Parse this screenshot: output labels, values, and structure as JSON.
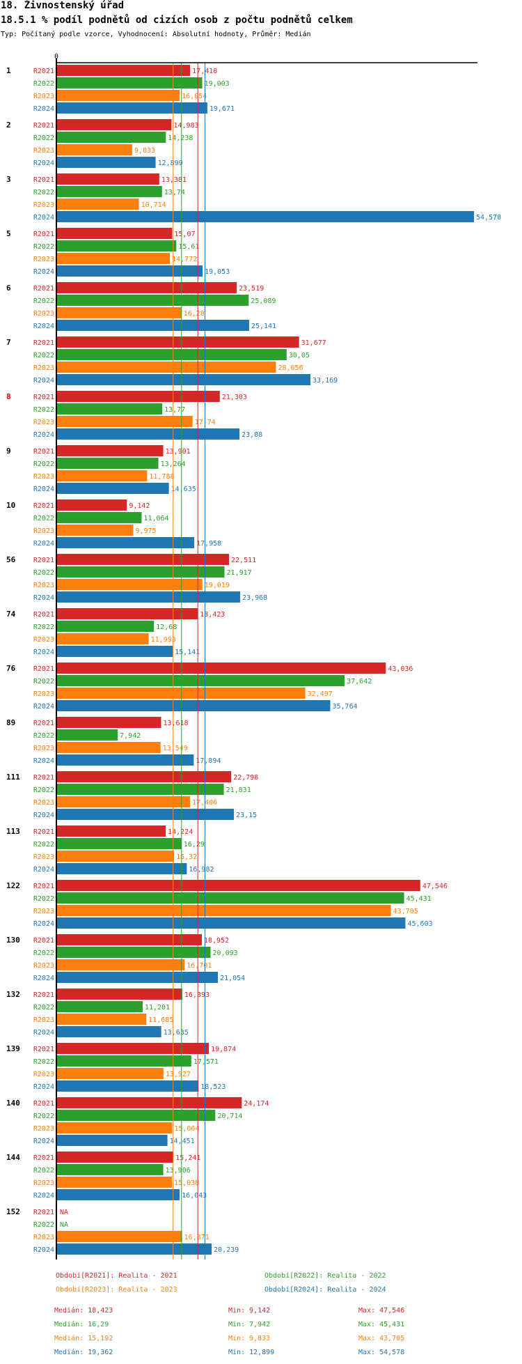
{
  "header": {
    "title": "18. Živnostenský úřad",
    "subtitle": "18.5.1 % podíl podnětů od cizích osob z počtu podnětů celkem",
    "info": "Typ: Počítaný podle vzorce, Vyhodnocení: Absolutní hodnoty, Průměr: Medián"
  },
  "chart_data": {
    "type": "bar",
    "orientation": "horizontal",
    "title": "18.5.1 % podíl podnětů od cizích osob z počtu podnětů celkem",
    "xlabel": "",
    "ylabel": "",
    "x_tick_labels": [
      "0"
    ],
    "xlim": [
      0,
      55
    ],
    "grid": false,
    "legend_position": "bottom",
    "series_names": [
      "R2021",
      "R2022",
      "R2023",
      "R2024"
    ],
    "colors": {
      "R2021": "#d62728",
      "R2022": "#2ca02c",
      "R2023": "#ff7f0e",
      "R2024": "#1f77b4"
    },
    "highlighted_category": "8",
    "highlight_color": "#ff0000",
    "categories": [
      "1",
      "2",
      "3",
      "5",
      "6",
      "7",
      "8",
      "9",
      "10",
      "56",
      "74",
      "76",
      "89",
      "111",
      "113",
      "122",
      "130",
      "132",
      "139",
      "140",
      "144",
      "152"
    ],
    "series": [
      {
        "name": "R2021",
        "values": [
          17.418,
          14.983,
          13.381,
          15.07,
          23.519,
          31.677,
          21.303,
          13.901,
          9.142,
          22.511,
          18.423,
          43.036,
          13.618,
          22.798,
          14.224,
          47.546,
          18.952,
          16.393,
          19.874,
          24.174,
          15.241,
          null
        ],
        "labels": [
          "17,418",
          "14,983",
          "13,381",
          "15,07",
          "23,519",
          "31,677",
          "21,303",
          "13,901",
          "9,142",
          "22,511",
          "18,423",
          "43,036",
          "13,618",
          "22,798",
          "14,224",
          "47,546",
          "18,952",
          "16,393",
          "19,874",
          "24,174",
          "15,241",
          "NA"
        ]
      },
      {
        "name": "R2022",
        "values": [
          19.003,
          14.238,
          13.74,
          15.61,
          25.089,
          30.05,
          13.77,
          13.264,
          11.064,
          21.917,
          12.68,
          37.642,
          7.942,
          21.831,
          16.29,
          45.431,
          20.093,
          11.201,
          17.571,
          20.714,
          13.906,
          null
        ],
        "labels": [
          "19,003",
          "14,238",
          "13,74",
          "15,61",
          "25,089",
          "30,05",
          "13,77",
          "13,264",
          "11,064",
          "21,917",
          "12,68",
          "37,642",
          "7,942",
          "21,831",
          "16,29",
          "45,431",
          "20,093",
          "11,201",
          "17,571",
          "20,714",
          "13,906",
          "NA"
        ]
      },
      {
        "name": "R2023",
        "values": [
          16.054,
          9.833,
          10.714,
          14.772,
          16.28,
          28.656,
          17.74,
          11.788,
          9.975,
          19.019,
          11.993,
          32.497,
          13.549,
          17.406,
          15.32,
          43.705,
          16.701,
          11.685,
          13.927,
          15.064,
          15.038,
          16.371
        ],
        "labels": [
          "16,054",
          "9,833",
          "10,714",
          "14,772",
          "16,28",
          "28,656",
          "17,74",
          "11,788",
          "9,975",
          "19,019",
          "11,993",
          "32,497",
          "13,549",
          "17,406",
          "15,32",
          "43,705",
          "16,701",
          "11,685",
          "13,927",
          "15,064",
          "15,038",
          "16,371"
        ]
      },
      {
        "name": "R2024",
        "values": [
          19.671,
          12.899,
          54.578,
          19.053,
          25.141,
          33.169,
          23.88,
          14.635,
          17.958,
          23.968,
          15.141,
          35.764,
          17.894,
          23.15,
          16.982,
          45.603,
          21.054,
          13.635,
          18.523,
          14.451,
          16.043,
          20.239
        ],
        "labels": [
          "19,671",
          "12,899",
          "54,578",
          "19,053",
          "25,141",
          "33,169",
          "23,88",
          "14,635",
          "17,958",
          "23,968",
          "15,141",
          "35,764",
          "17,894",
          "23,15",
          "16,982",
          "45,603",
          "21,054",
          "13,635",
          "18,523",
          "14,451",
          "16,043",
          "20,239"
        ]
      }
    ],
    "reference_lines": [
      {
        "series": "R2021",
        "kind": "median",
        "value": 18.423
      },
      {
        "series": "R2022",
        "kind": "median",
        "value": 16.29
      },
      {
        "series": "R2023",
        "kind": "median",
        "value": 15.192
      },
      {
        "series": "R2024",
        "kind": "median",
        "value": 19.362
      }
    ]
  },
  "legend": [
    {
      "series": "R2021",
      "label": "Období[R2021]: Realita - 2021",
      "color": "#d62728"
    },
    {
      "series": "R2022",
      "label": "Období[R2022]: Realita - 2022",
      "color": "#2ca02c"
    },
    {
      "series": "R2023",
      "label": "Období[R2023]: Realita - 2023",
      "color": "#ff7f0e"
    },
    {
      "series": "R2024",
      "label": "Období[R2024]: Realita - 2024",
      "color": "#1f77b4"
    }
  ],
  "stats": [
    {
      "series": "R2021",
      "color": "#d62728",
      "median": "Medián: 18,423",
      "min": "Min: 9,142",
      "max": "Max: 47,546"
    },
    {
      "series": "R2022",
      "color": "#2ca02c",
      "median": "Medián: 16,29",
      "min": "Min: 7,942",
      "max": "Max: 45,431"
    },
    {
      "series": "R2023",
      "color": "#ff7f0e",
      "median": "Medián: 15,192",
      "min": "Min: 9,833",
      "max": "Max: 43,705"
    },
    {
      "series": "R2024",
      "color": "#1f77b4",
      "median": "Medián: 19,362",
      "min": "Min: 12,899",
      "max": "Max: 54,578"
    }
  ]
}
